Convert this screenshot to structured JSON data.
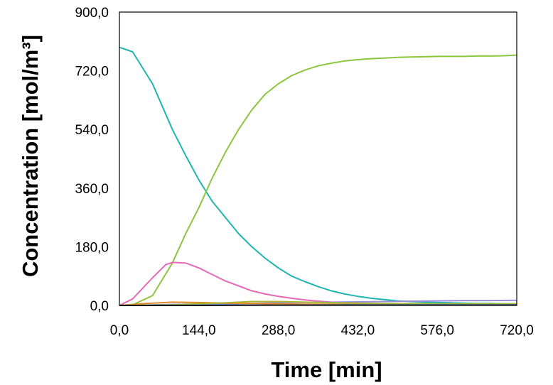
{
  "chart_data": {
    "type": "line",
    "xlabel": "Time [min]",
    "ylabel": "Concentration [mol/m³]",
    "xlim": [
      0,
      720
    ],
    "ylim": [
      0,
      900
    ],
    "x_ticks": [
      "0,0",
      "144,0",
      "288,0",
      "432,0",
      "576,0",
      "720,0"
    ],
    "y_ticks": [
      "0,0",
      "180,0",
      "360,0",
      "540,0",
      "720,0",
      "900,0"
    ],
    "grid": false,
    "legend": "none",
    "series": [
      {
        "color": "#1fb5b0",
        "x": [
          0,
          24,
          60,
          96,
          120,
          144,
          168,
          192,
          216,
          240,
          264,
          288,
          312,
          336,
          360,
          384,
          408,
          432,
          456,
          480,
          504,
          528,
          552,
          576,
          600,
          624,
          648,
          672,
          696,
          720
        ],
        "y": [
          792,
          778,
          680,
          540,
          460,
          385,
          320,
          270,
          220,
          180,
          145,
          115,
          90,
          73,
          58,
          45,
          35,
          28,
          22,
          18,
          14,
          12,
          10,
          9,
          8,
          7,
          6,
          6,
          5,
          5
        ]
      },
      {
        "color": "#8cc63f",
        "x": [
          0,
          24,
          60,
          96,
          120,
          144,
          168,
          192,
          216,
          240,
          264,
          288,
          312,
          336,
          360,
          384,
          408,
          432,
          456,
          480,
          504,
          528,
          552,
          576,
          600,
          624,
          648,
          672,
          696,
          720
        ],
        "y": [
          0,
          2,
          30,
          130,
          220,
          300,
          390,
          470,
          540,
          600,
          648,
          680,
          705,
          722,
          735,
          743,
          750,
          754,
          757,
          759,
          761,
          762,
          763,
          764,
          764,
          764,
          765,
          765,
          766,
          768
        ]
      },
      {
        "color": "#e868b8",
        "x": [
          0,
          24,
          60,
          84,
          96,
          120,
          144,
          168,
          192,
          216,
          240,
          264,
          288,
          312,
          336,
          360,
          384,
          408,
          432,
          480,
          528,
          576,
          624,
          672,
          720
        ],
        "y": [
          0,
          20,
          85,
          125,
          132,
          130,
          115,
          95,
          75,
          60,
          45,
          35,
          28,
          22,
          17,
          13,
          10,
          8,
          6,
          4,
          3,
          2,
          2,
          1,
          1
        ]
      },
      {
        "color": "#9a8fd8",
        "x": [
          0,
          96,
          192,
          288,
          384,
          432,
          480,
          528,
          576,
          624,
          672,
          720
        ],
        "y": [
          0,
          3,
          5,
          8,
          10,
          11,
          12,
          13,
          14,
          15,
          15,
          16
        ]
      },
      {
        "color": "#e08a2c",
        "x": [
          0,
          48,
          96,
          144,
          192,
          240,
          288,
          336,
          384,
          432,
          480,
          576,
          720
        ],
        "y": [
          0,
          6,
          10,
          9,
          7,
          6,
          5,
          4,
          4,
          3,
          3,
          2,
          2
        ]
      },
      {
        "color": "#a9b835",
        "x": [
          0,
          96,
          192,
          240,
          288,
          336,
          384,
          432,
          480,
          576,
          720
        ],
        "y": [
          0,
          2,
          8,
          12,
          12,
          10,
          8,
          7,
          6,
          5,
          5
        ]
      },
      {
        "color": "#4a7fc0",
        "x": [
          0,
          144,
          288,
          432,
          576,
          720
        ],
        "y": [
          0,
          1,
          1,
          2,
          2,
          2
        ]
      },
      {
        "color": "#3a3a3a",
        "x": [
          0,
          144,
          288,
          432,
          576,
          720
        ],
        "y": [
          0,
          0,
          1,
          1,
          1,
          1
        ]
      }
    ]
  }
}
